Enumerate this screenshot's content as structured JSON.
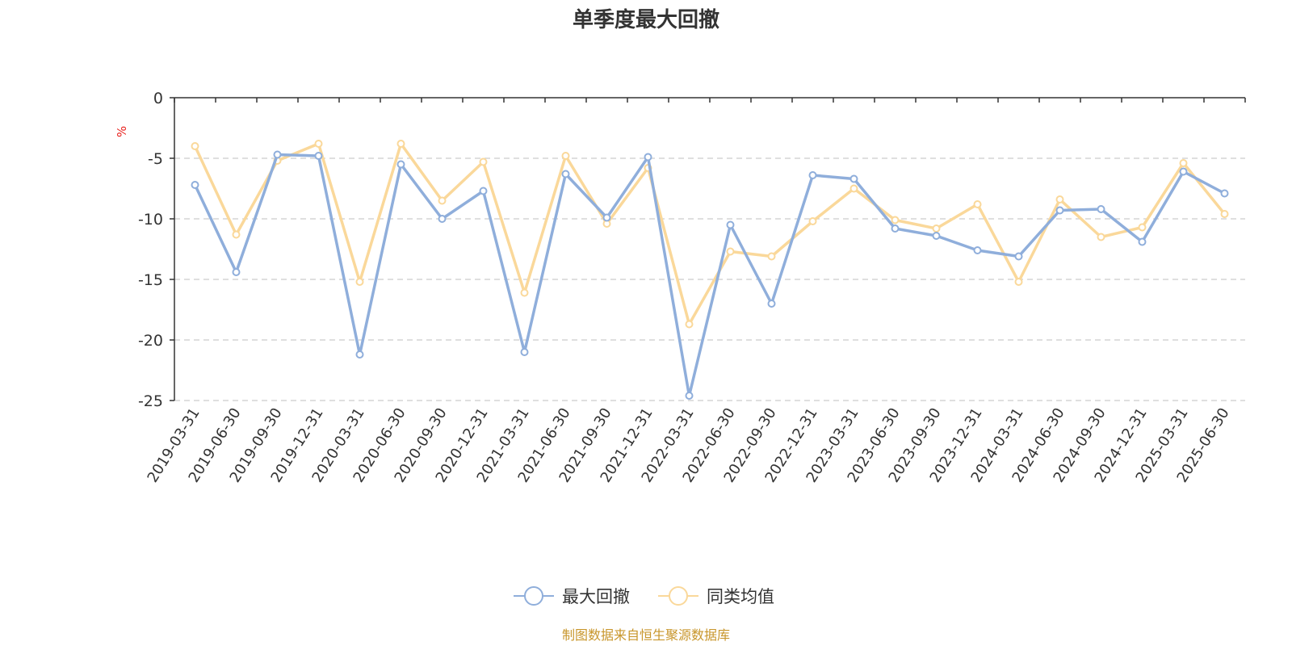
{
  "chart_data": {
    "type": "line",
    "title": "单季度最大回撤",
    "ylabel": "%",
    "ylim": [
      -25,
      0
    ],
    "yticks": [
      0,
      -5,
      -10,
      -15,
      -20,
      -25
    ],
    "grid": true,
    "legend_position": "bottom",
    "categories": [
      "2019-03-31",
      "2019-06-30",
      "2019-09-30",
      "2019-12-31",
      "2020-03-31",
      "2020-06-30",
      "2020-09-30",
      "2020-12-31",
      "2021-03-31",
      "2021-06-30",
      "2021-09-30",
      "2021-12-31",
      "2022-03-31",
      "2022-06-30",
      "2022-09-30",
      "2022-12-31",
      "2023-03-31",
      "2023-06-30",
      "2023-09-30",
      "2023-12-31",
      "2024-03-31",
      "2024-06-30",
      "2024-09-30",
      "2024-12-31",
      "2025-03-31",
      "2025-06-30"
    ],
    "series": [
      {
        "name": "最大回撤",
        "color": "#8FAEDB",
        "values": [
          -7.2,
          -14.4,
          -4.7,
          -4.8,
          -21.2,
          -5.5,
          -10.0,
          -7.7,
          -21.0,
          -6.3,
          -9.9,
          -4.9,
          -24.6,
          -10.5,
          -17.0,
          -6.4,
          -6.7,
          -10.8,
          -11.4,
          -12.6,
          -13.1,
          -9.3,
          -9.2,
          -11.9,
          -6.1,
          -7.9
        ]
      },
      {
        "name": "同类均值",
        "color": "#FAD89A",
        "values": [
          -4.0,
          -11.3,
          -5.2,
          -3.8,
          -15.2,
          -3.8,
          -8.5,
          -5.3,
          -16.1,
          -4.8,
          -10.4,
          -5.8,
          -18.7,
          -12.7,
          -13.1,
          -10.2,
          -7.5,
          -10.1,
          -10.8,
          -8.8,
          -15.2,
          -8.4,
          -11.5,
          -10.7,
          -5.4,
          -9.6
        ]
      }
    ],
    "source": "制图数据来自恒生聚源数据库"
  },
  "colors": {
    "axis": "#333333",
    "grid": "#cccccc",
    "unit": "#e8211d",
    "source": "#c8962b"
  }
}
